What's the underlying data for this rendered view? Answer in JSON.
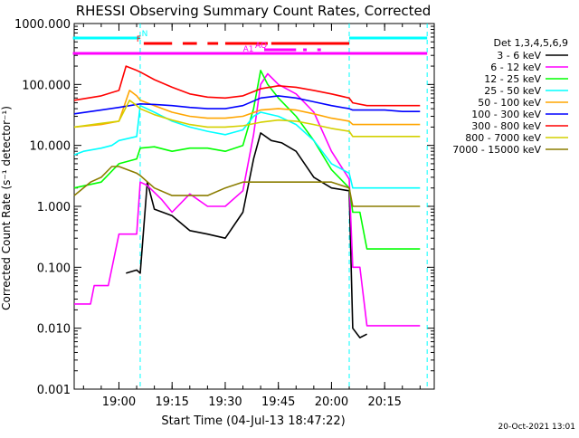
{
  "chart_data": {
    "type": "line",
    "title": "RHESSI Observing Summary Count Rates, Corrected",
    "xlabel": "Start Time (04-Jul-13 18:47:22)",
    "ylabel": "Corrected Count Rate (s⁻¹ detector⁻¹)",
    "y_scale": "log",
    "ylim": [
      0.001,
      1000
    ],
    "xlim": [
      "18:47:22",
      "20:29:00"
    ],
    "y_ticks": [
      "1000.000",
      "100.000",
      "10.000",
      "1.000",
      "0.100",
      "0.010",
      "0.001"
    ],
    "x_ticks": [
      "19:00",
      "19:15",
      "19:30",
      "19:45",
      "20:00",
      "20:15"
    ],
    "legend_title": "Det 1,3,4,5,6,9",
    "legend_position": "right",
    "timestamp": "20-Oct-2021 13:01",
    "series": [
      {
        "name": "3 - 6 keV",
        "color": "#000000",
        "x": [
          "19:02",
          "19:05",
          "19:06",
          "19:08",
          "19:10",
          "19:15",
          "19:20",
          "19:25",
          "19:30",
          "19:35",
          "19:38",
          "19:40",
          "19:43",
          "19:46",
          "19:50",
          "19:55",
          "20:00",
          "20:05",
          "20:06",
          "20:08",
          "20:10"
        ],
        "values": [
          0.08,
          0.09,
          0.08,
          2.5,
          0.9,
          0.7,
          0.4,
          0.35,
          0.3,
          0.8,
          6,
          16,
          12,
          11,
          8,
          3,
          2,
          1.8,
          0.01,
          0.007,
          0.008
        ]
      },
      {
        "name": "6 - 12 keV",
        "color": "#ff00ff",
        "x": [
          "18:47",
          "18:52",
          "18:53",
          "18:57",
          "19:00",
          "19:02",
          "19:05",
          "19:06",
          "19:08",
          "19:12",
          "19:15",
          "19:20",
          "19:25",
          "19:30",
          "19:35",
          "19:38",
          "19:40",
          "19:42",
          "19:45",
          "19:50",
          "19:55",
          "20:00",
          "20:05",
          "20:06",
          "20:08",
          "20:10",
          "20:20",
          "20:25"
        ],
        "values": [
          0.025,
          0.025,
          0.05,
          0.05,
          0.35,
          0.35,
          0.35,
          2.5,
          2.2,
          1.3,
          0.8,
          1.6,
          1.0,
          1.0,
          1.8,
          15,
          100,
          150,
          100,
          70,
          35,
          8,
          2.8,
          0.1,
          0.1,
          0.011,
          0.011,
          0.011
        ]
      },
      {
        "name": "12 - 25 keV",
        "color": "#00ff00",
        "x": [
          "18:47",
          "18:55",
          "19:00",
          "19:05",
          "19:06",
          "19:10",
          "19:15",
          "19:20",
          "19:25",
          "19:30",
          "19:35",
          "19:38",
          "19:40",
          "19:42",
          "19:45",
          "19:50",
          "19:55",
          "20:00",
          "20:05",
          "20:06",
          "20:08",
          "20:10",
          "20:15",
          "20:20",
          "20:25"
        ],
        "values": [
          2,
          2.5,
          5,
          6,
          9,
          9.5,
          8,
          9,
          9,
          8,
          10,
          40,
          170,
          100,
          60,
          30,
          12,
          4,
          2,
          0.8,
          0.8,
          0.2,
          0.2,
          0.2,
          0.2
        ]
      },
      {
        "name": "25 - 50 keV",
        "color": "#00ffff",
        "x": [
          "18:47",
          "18:50",
          "18:55",
          "18:58",
          "19:00",
          "19:05",
          "19:06",
          "19:10",
          "19:15",
          "19:20",
          "19:25",
          "19:30",
          "19:35",
          "19:38",
          "19:40",
          "19:45",
          "19:50",
          "19:55",
          "20:00",
          "20:05",
          "20:06",
          "20:10",
          "20:15",
          "20:20",
          "20:25"
        ],
        "values": [
          7,
          8,
          9,
          10,
          12,
          14,
          45,
          35,
          25,
          20,
          17,
          15,
          18,
          30,
          35,
          30,
          22,
          12,
          5,
          3.5,
          2,
          2,
          2,
          2,
          2
        ]
      },
      {
        "name": "50 - 100 keV",
        "color": "#ffa500",
        "x": [
          "18:47",
          "18:55",
          "19:00",
          "19:03",
          "19:05",
          "19:06",
          "19:10",
          "19:15",
          "19:20",
          "19:25",
          "19:30",
          "19:35",
          "19:40",
          "19:45",
          "19:50",
          "19:55",
          "20:00",
          "20:05",
          "20:06",
          "20:10",
          "20:15",
          "20:20",
          "20:25"
        ],
        "values": [
          20,
          22,
          25,
          80,
          65,
          55,
          45,
          35,
          30,
          28,
          28,
          30,
          38,
          40,
          38,
          33,
          28,
          25,
          22,
          22,
          22,
          22,
          22
        ]
      },
      {
        "name": "100 - 300 keV",
        "color": "#0000ff",
        "x": [
          "18:47",
          "18:55",
          "19:00",
          "19:05",
          "19:06",
          "19:10",
          "19:15",
          "19:20",
          "19:25",
          "19:30",
          "19:35",
          "19:40",
          "19:45",
          "19:50",
          "19:55",
          "20:00",
          "20:05",
          "20:06",
          "20:10",
          "20:15",
          "20:20",
          "20:25"
        ],
        "values": [
          33,
          38,
          42,
          47,
          48,
          47,
          45,
          42,
          40,
          40,
          45,
          60,
          65,
          60,
          52,
          45,
          40,
          38,
          38,
          38,
          36,
          36
        ]
      },
      {
        "name": "300 - 800 keV",
        "color": "#ff0000",
        "x": [
          "18:47",
          "18:55",
          "19:00",
          "19:02",
          "19:05",
          "19:06",
          "19:10",
          "19:15",
          "19:20",
          "19:25",
          "19:30",
          "19:35",
          "19:40",
          "19:45",
          "19:50",
          "19:55",
          "20:00",
          "20:05",
          "20:06",
          "20:10",
          "20:15",
          "20:20",
          "20:25"
        ],
        "values": [
          55,
          65,
          80,
          200,
          170,
          160,
          120,
          90,
          70,
          62,
          60,
          65,
          85,
          95,
          90,
          80,
          70,
          60,
          50,
          45,
          45,
          45,
          45
        ]
      },
      {
        "name": "800 - 7000 keV",
        "color": "#d4d000",
        "x": [
          "18:47",
          "18:55",
          "19:00",
          "19:03",
          "19:05",
          "19:06",
          "19:10",
          "19:15",
          "19:20",
          "19:25",
          "19:30",
          "19:35",
          "19:40",
          "19:45",
          "19:50",
          "19:55",
          "20:00",
          "20:05",
          "20:06",
          "20:10",
          "20:15",
          "20:20",
          "20:25"
        ],
        "values": [
          20,
          23,
          25,
          55,
          45,
          40,
          32,
          26,
          22,
          20,
          20,
          21,
          24,
          26,
          25,
          22,
          19,
          17,
          14,
          14,
          14,
          14,
          14
        ]
      },
      {
        "name": "7000 - 15000 keV",
        "color": "#8b7d00",
        "x": [
          "18:47",
          "18:52",
          "18:55",
          "18:58",
          "19:00",
          "19:05",
          "19:06",
          "19:10",
          "19:15",
          "19:20",
          "19:25",
          "19:30",
          "19:35",
          "19:40",
          "19:45",
          "19:50",
          "19:55",
          "20:00",
          "20:05",
          "20:06",
          "20:10",
          "20:15",
          "20:20",
          "20:25"
        ],
        "values": [
          1.5,
          2.5,
          3,
          4.5,
          4.5,
          3.5,
          3.2,
          2,
          1.5,
          1.5,
          1.5,
          2,
          2.5,
          2.5,
          2.5,
          2.5,
          2.5,
          2.5,
          2,
          1,
          1,
          1,
          1,
          1
        ]
      }
    ],
    "flag_bars": [
      {
        "label": "N",
        "color": "#00ffff",
        "segments": [
          [
            "18:47",
            "19:06"
          ],
          [
            "20:05",
            "20:27"
          ]
        ]
      },
      {
        "label": "F",
        "color": "#ff0000",
        "segments": [
          [
            "19:07",
            "19:15"
          ],
          [
            "19:18",
            "19:22"
          ],
          [
            "19:25",
            "19:28"
          ],
          [
            "19:30",
            "19:42"
          ],
          [
            "19:43",
            "20:05"
          ]
        ]
      },
      {
        "label": "AQ",
        "color": "#ff00ff",
        "segments": [
          [
            "19:41",
            "19:50"
          ],
          [
            "19:52",
            "19:53"
          ],
          [
            "19:56",
            "19:57"
          ]
        ]
      },
      {
        "label": "A1",
        "color": "#ff00ff",
        "segments": [
          [
            "18:47",
            "20:27"
          ]
        ]
      }
    ],
    "vertical_markers": [
      "19:06",
      "20:05",
      "20:27"
    ],
    "marker_color": "#00ffff"
  }
}
